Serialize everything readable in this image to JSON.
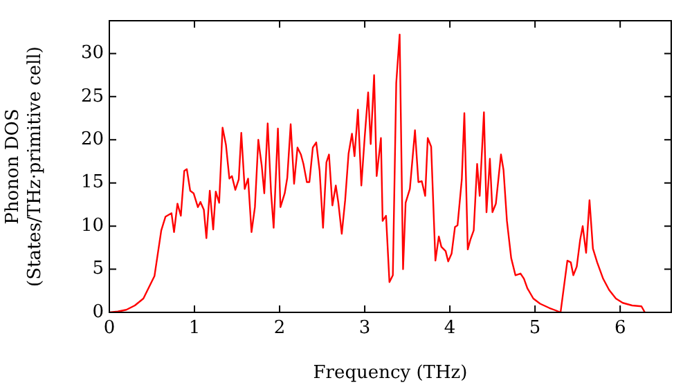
{
  "chart_data": {
    "type": "line",
    "xlabel": "Frequency (THz)",
    "ylabel": "Phonon DOS\n(States/THz·primitive cell)",
    "xlim": [
      0,
      6.6
    ],
    "ylim": [
      0,
      33.8
    ],
    "xticks": [
      0,
      1,
      2,
      3,
      4,
      5,
      6
    ],
    "yticks": [
      0,
      5,
      10,
      15,
      20,
      25,
      30
    ],
    "grid": false,
    "legend": false,
    "marker": "none",
    "line_style": "solid",
    "series": [
      {
        "color": "#ff0000",
        "x": [
          0,
          0.1,
          0.2,
          0.3,
          0.4,
          0.53,
          0.61,
          0.66,
          0.73,
          0.76,
          0.8,
          0.84,
          0.88,
          0.91,
          0.95,
          0.99,
          1.04,
          1.07,
          1.11,
          1.14,
          1.18,
          1.22,
          1.25,
          1.29,
          1.33,
          1.37,
          1.41,
          1.44,
          1.48,
          1.52,
          1.55,
          1.59,
          1.63,
          1.67,
          1.71,
          1.75,
          1.79,
          1.82,
          1.86,
          1.9,
          1.93,
          1.98,
          2.01,
          2.06,
          2.09,
          2.13,
          2.17,
          2.21,
          2.25,
          2.28,
          2.32,
          2.35,
          2.39,
          2.43,
          2.47,
          2.51,
          2.55,
          2.58,
          2.62,
          2.66,
          2.69,
          2.73,
          2.77,
          2.81,
          2.85,
          2.88,
          2.92,
          2.96,
          3.0,
          3.04,
          3.07,
          3.11,
          3.14,
          3.19,
          3.21,
          3.25,
          3.29,
          3.33,
          3.37,
          3.41,
          3.45,
          3.48,
          3.53,
          3.59,
          3.63,
          3.67,
          3.71,
          3.74,
          3.78,
          3.83,
          3.87,
          3.9,
          3.95,
          3.98,
          4.02,
          4.06,
          4.09,
          4.14,
          4.17,
          4.21,
          4.24,
          4.28,
          4.32,
          4.35,
          4.4,
          4.43,
          4.47,
          4.5,
          4.54,
          4.6,
          4.63,
          4.67,
          4.72,
          4.77,
          4.83,
          4.87,
          4.91,
          4.98,
          5.06,
          5.17,
          5.25,
          5.3,
          5.38,
          5.42,
          5.45,
          5.49,
          5.53,
          5.56,
          5.6,
          5.64,
          5.68,
          5.73,
          5.8,
          5.87,
          5.95,
          6.03,
          6.14,
          6.25,
          6.29
        ],
        "values": [
          0,
          0.1,
          0.3,
          0.8,
          1.6,
          4.2,
          9.5,
          11.1,
          11.5,
          9.3,
          12.6,
          11.2,
          16.4,
          16.6,
          14.1,
          13.8,
          12.2,
          12.8,
          11.9,
          8.6,
          14.1,
          9.6,
          14.0,
          12.7,
          21.4,
          19.4,
          15.5,
          15.8,
          14.2,
          15.4,
          20.8,
          14.3,
          15.5,
          9.3,
          12.2,
          20.0,
          17.0,
          13.8,
          21.9,
          13.8,
          9.8,
          21.3,
          12.2,
          13.8,
          15.6,
          21.8,
          14.9,
          19.1,
          18.3,
          17.2,
          15.1,
          15.1,
          19.1,
          19.7,
          16.4,
          9.8,
          17.4,
          18.3,
          12.4,
          14.7,
          12.7,
          9.1,
          13.0,
          18.4,
          20.7,
          18.1,
          23.5,
          14.7,
          20.4,
          25.5,
          19.5,
          27.5,
          15.8,
          20.2,
          10.6,
          11.2,
          3.5,
          4.3,
          26.6,
          32.2,
          5.0,
          12.7,
          14.3,
          21.1,
          15.1,
          15.2,
          13.5,
          20.2,
          19.2,
          6.0,
          8.8,
          7.6,
          7.1,
          5.9,
          6.8,
          9.9,
          10.1,
          15.4,
          23.1,
          7.3,
          8.4,
          9.5,
          17.2,
          13.5,
          23.2,
          11.6,
          17.8,
          11.6,
          12.6,
          18.3,
          16.5,
          10.6,
          6.3,
          4.3,
          4.5,
          3.9,
          2.8,
          1.6,
          1.0,
          0.5,
          0.2,
          0,
          6.0,
          5.8,
          4.3,
          5.3,
          8.4,
          10.0,
          6.9,
          13.0,
          7.4,
          5.8,
          3.9,
          2.6,
          1.6,
          1.1,
          0.8,
          0.7,
          0
        ]
      }
    ]
  }
}
